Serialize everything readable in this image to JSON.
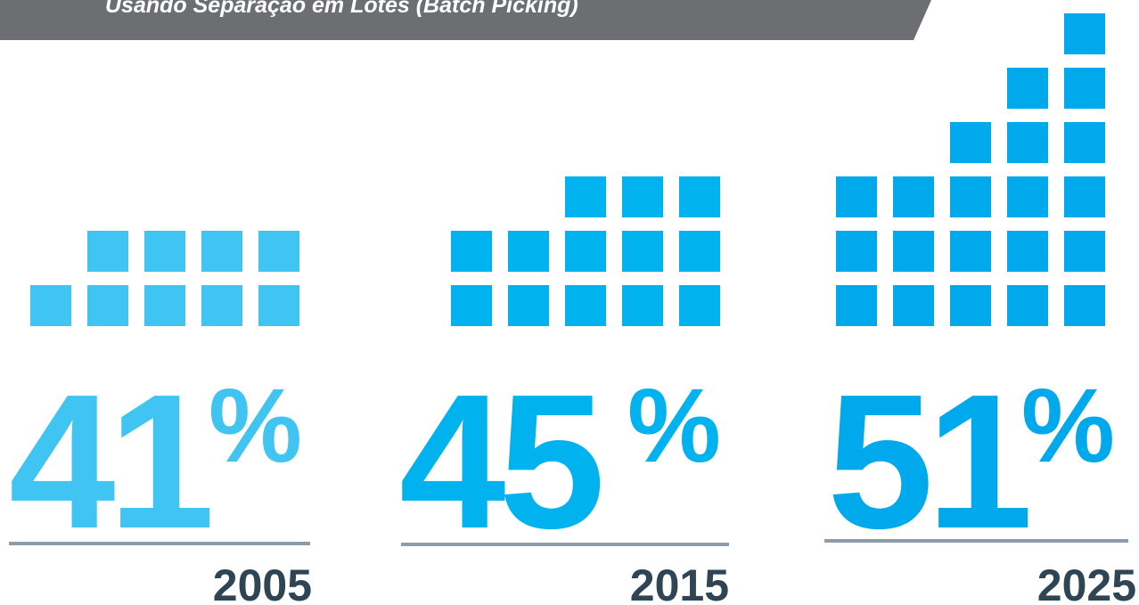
{
  "header": {
    "title": "Usando Separação em Lotes (Batch Picking)"
  },
  "panels": [
    {
      "value": "41",
      "unit": "%",
      "year": "2005",
      "color": "#40c4f2"
    },
    {
      "value": "45",
      "unit": "%",
      "year": "2015",
      "color": "#00b3ee"
    },
    {
      "value": "51",
      "unit": "%",
      "year": "2025",
      "color": "#00a9eb"
    }
  ]
}
